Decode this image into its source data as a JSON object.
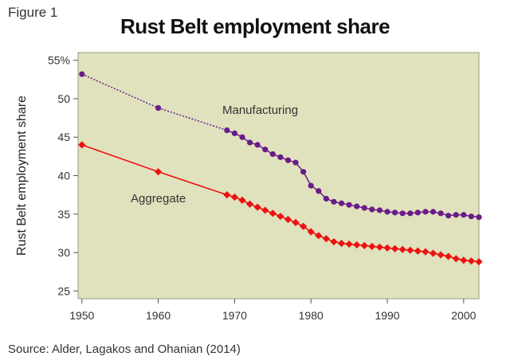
{
  "figure_label": "Figure 1",
  "source": "Source: Alder, Lagakos and Ohanian (2014)",
  "colors": {
    "plot_background": "#e0e2bd",
    "manufacturing": "#6a1b8a",
    "aggregate": "#ee1111"
  },
  "chart_data": {
    "type": "line",
    "title": "Rust Belt employment share",
    "xlabel": "",
    "ylabel": "Rust Belt employment share",
    "xlim": [
      1949.5,
      2002
    ],
    "ylim": [
      24,
      56
    ],
    "x_ticks": [
      1950,
      1960,
      1970,
      1980,
      1990,
      2000
    ],
    "y_ticks": [
      25,
      30,
      35,
      40,
      45,
      50,
      55
    ],
    "y_tick_labels": [
      "25",
      "30",
      "35",
      "40",
      "45",
      "50",
      "55%"
    ],
    "grid": false,
    "series": [
      {
        "name": "Manufacturing",
        "display_name": "Manufacturing",
        "x": [
          1950,
          1960,
          1969,
          1970,
          1971,
          1972,
          1973,
          1974,
          1975,
          1976,
          1977,
          1978,
          1979,
          1980,
          1981,
          1982,
          1983,
          1984,
          1985,
          1986,
          1987,
          1988,
          1989,
          1990,
          1991,
          1992,
          1993,
          1994,
          1995,
          1996,
          1997,
          1998,
          1999,
          2000,
          2001,
          2002
        ],
        "values": [
          53.2,
          48.8,
          45.9,
          45.5,
          45.0,
          44.3,
          44.0,
          43.4,
          42.8,
          42.4,
          42.0,
          41.7,
          40.5,
          38.7,
          38.0,
          37.0,
          36.6,
          36.4,
          36.2,
          36.0,
          35.8,
          35.6,
          35.5,
          35.3,
          35.2,
          35.1,
          35.1,
          35.2,
          35.3,
          35.3,
          35.1,
          34.8,
          34.9,
          34.9,
          34.7,
          34.6
        ]
      },
      {
        "name": "Aggregate",
        "display_name": "Aggregate",
        "x": [
          1950,
          1960,
          1969,
          1970,
          1971,
          1972,
          1973,
          1974,
          1975,
          1976,
          1977,
          1978,
          1979,
          1980,
          1981,
          1982,
          1983,
          1984,
          1985,
          1986,
          1987,
          1988,
          1989,
          1990,
          1991,
          1992,
          1993,
          1994,
          1995,
          1996,
          1997,
          1998,
          1999,
          2000,
          2001,
          2002
        ],
        "values": [
          44.0,
          40.5,
          37.5,
          37.2,
          36.8,
          36.3,
          35.9,
          35.5,
          35.1,
          34.7,
          34.3,
          33.9,
          33.4,
          32.7,
          32.2,
          31.8,
          31.4,
          31.2,
          31.1,
          31.0,
          30.9,
          30.8,
          30.7,
          30.6,
          30.5,
          30.4,
          30.3,
          30.2,
          30.1,
          29.9,
          29.7,
          29.5,
          29.2,
          29.0,
          28.9,
          28.8
        ]
      }
    ],
    "annotations": [
      {
        "text": "Manufacturing",
        "series": "Manufacturing"
      },
      {
        "text": "Aggregate",
        "series": "Aggregate"
      }
    ]
  }
}
